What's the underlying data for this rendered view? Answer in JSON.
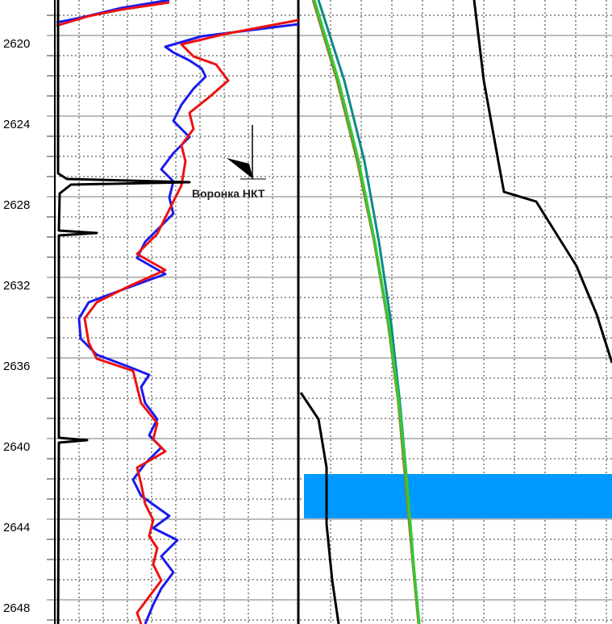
{
  "chart_data": {
    "type": "well-log",
    "ylim": [
      2618.24,
      2649.2
    ],
    "yticks": [
      2620,
      2624,
      2628,
      2632,
      2636,
      2640,
      2644,
      2648
    ],
    "minor_yticks": [
      2619,
      2621,
      2622,
      2623,
      2625,
      2626,
      2627,
      2629,
      2630,
      2631,
      2633,
      2634,
      2635,
      2637,
      2638,
      2639,
      2641,
      2642,
      2643,
      2645,
      2646,
      2647,
      2649
    ],
    "tracks": [
      {
        "xlim": [
          0,
          302
        ],
        "xticks": [
          30,
          60,
          90,
          120,
          150,
          180,
          210,
          240,
          270
        ],
        "annotations": [
          {
            "text": "Воронка НКТ",
            "depth": 2627.9,
            "x": 170
          }
        ],
        "series": [
          {
            "color": "#1a1aee",
            "depth": [
              2619.36,
              2619.12,
              2618.64,
              2618.24,
              null,
              2619.44,
              2620.04,
              2620.56,
              2620.84,
              2621.24,
              2621.64,
              2622.04,
              2622.64,
              2623.44,
              2624.24,
              2625.04,
              2625.84,
              2626.64,
              2627.24,
              2628.04,
              2628.84,
              2629.44,
              2630.24,
              2631.04,
              2631.84,
              2632.64,
              2633.24,
              2634.04,
              2635.04,
              2635.84,
              2636.44,
              2636.84,
              2637.44,
              2638.24,
              2639.04,
              2639.84,
              2640.44,
              2641.24,
              2642.04,
              2642.84,
              2643.84,
              2644.44,
              2645.04,
              2645.84,
              2646.64,
              2647.44,
              2648.24,
              2649.2
            ],
            "values": [
              2,
              32,
              82,
              142,
              null,
              302,
              182,
              137,
              147,
              167,
              182,
              187,
              172,
              157,
              147,
              167,
              147,
              132,
              147,
              142,
              147,
              132,
              112,
              102,
              137,
              82,
              42,
              30,
              32,
              52,
              92,
              117,
              107,
              112,
              127,
              117,
              132,
              112,
              97,
              107,
              142,
              122,
              152,
              132,
              147,
              132,
              122,
              112
            ]
          },
          {
            "color": "#ee1111",
            "depth": [
              2619.52,
              2619.04,
              2618.72,
              2618.36,
              null,
              2619.24,
              2619.92,
              2620.44,
              2621.04,
              2621.44,
              2622.24,
              2623.04,
              2623.84,
              2624.64,
              2625.44,
              2626.24,
              2627.44,
              2628.24,
              2629.04,
              2629.84,
              2630.84,
              2631.64,
              2632.44,
              2633.24,
              2634.04,
              2635.24,
              2636.04,
              2636.64,
              2637.44,
              2638.24,
              2639.24,
              2640.04,
              2640.64,
              2641.44,
              2642.24,
              2643.24,
              2644.04,
              2644.84,
              2645.44,
              2646.24,
              2647.04,
              2647.84,
              2648.64,
              2649.2
            ],
            "values": [
              2,
              42,
              82,
              142,
              null,
              302,
              212,
              157,
              172,
              200,
              215,
              192,
              167,
              172,
              157,
              162,
              157,
              147,
              137,
              127,
              102,
              137,
              92,
              52,
              37,
              42,
              52,
              97,
              102,
              107,
              127,
              122,
              137,
              102,
              107,
              112,
              122,
              117,
              127,
              122,
              132,
              117,
              102,
              107
            ]
          },
          {
            "color": "#000000",
            "depth": [
              2618.24,
              2626.84,
              2627.12,
              2627.28,
              2627.4,
              2627.84,
              2629.68,
              2629.8,
              2629.92,
              2639.96,
              2640.08,
              2640.2,
              2649.2
            ],
            "values": [
              4,
              4,
              15,
              167,
              20,
              6,
              5,
              52,
              5,
              5,
              40,
              5,
              4
            ]
          }
        ]
      },
      {
        "xlim": [
          0,
          387
        ],
        "xticks": [
          38,
          76,
          114,
          152,
          190,
          228,
          266,
          304,
          342,
          380
        ],
        "bands": [
          {
            "top": 2641.76,
            "bottom": 2643.96,
            "x0": 5,
            "x1": 387,
            "color": "#0099ff"
          }
        ],
        "series": [
          {
            "color": "#000000",
            "depth": [
              2618.24,
              2622.24,
              2626.24,
              2627.76,
              2628.24,
              2629.84,
              2631.44,
              2633.84,
              2636.24
            ],
            "values": [
              216,
              228,
              246,
              253,
              293,
              318,
              343,
              368,
              387
            ]
          },
          {
            "color": "#000000",
            "depth": [
              2637.72,
              2639.04,
              2641.44,
              2644.24,
              2647.04,
              2649.2
            ],
            "values": [
              1,
              23,
              33,
              33,
              40,
              48
            ]
          },
          {
            "color": "#118888",
            "depth": [
              2618.24,
              2622.24,
              2626.24,
              2630.24,
              2634.24,
              2638.24,
              2642.24,
              2646.24,
              2649.2
            ],
            "values": [
              23,
              55,
              80,
              98,
              113,
              124,
              133,
              141,
              148
            ]
          },
          {
            "color": "#888833",
            "depth": [
              2618.24,
              2622.24,
              2626.24,
              2630.24,
              2634.24,
              2638.24,
              2642.24,
              2646.24,
              2649.2
            ],
            "values": [
              16,
              46,
              71,
              92,
              109,
              122,
              131,
              140,
              147
            ]
          },
          {
            "color": "#33cc33",
            "depth": [
              2618.24,
              2622.24,
              2626.24,
              2630.24,
              2634.24,
              2638.24,
              2642.24,
              2646.24,
              2649.2
            ],
            "values": [
              18,
              48,
              73,
              93,
              110,
              123,
              133,
              141,
              148
            ]
          }
        ]
      }
    ]
  }
}
